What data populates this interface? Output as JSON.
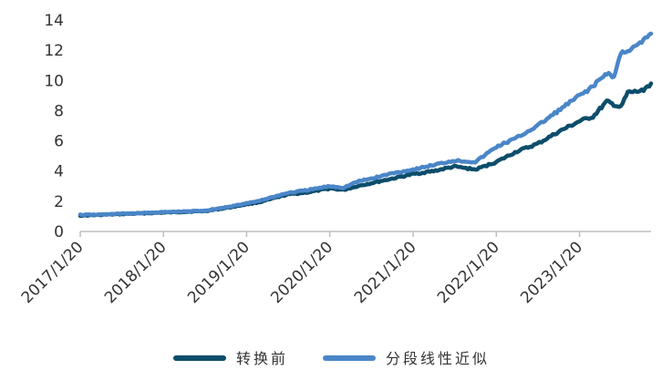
{
  "chart_data": {
    "type": "line",
    "title": "",
    "xlabel": "",
    "ylabel": "",
    "ylim": [
      0,
      14
    ],
    "yticks": [
      0,
      2,
      4,
      6,
      8,
      10,
      12,
      14
    ],
    "xlim": [
      "2017/1/20",
      "2023/11/30"
    ],
    "xticks": [
      "2017/1/20",
      "2018/1/20",
      "2019/1/20",
      "2020/1/20",
      "2021/1/20",
      "2022/1/20",
      "2023/1/20"
    ],
    "grid": false,
    "legend_position": "bottom",
    "series": [
      {
        "name": "转换前",
        "color": "#0d4d6b",
        "points": [
          [
            "2017/1/20",
            1.05
          ],
          [
            "2017/4/20",
            1.1
          ],
          [
            "2017/7/20",
            1.15
          ],
          [
            "2017/10/20",
            1.2
          ],
          [
            "2018/1/20",
            1.25
          ],
          [
            "2018/4/20",
            1.3
          ],
          [
            "2018/7/20",
            1.35
          ],
          [
            "2018/10/20",
            1.55
          ],
          [
            "2019/1/20",
            1.8
          ],
          [
            "2019/3/20",
            1.95
          ],
          [
            "2019/5/20",
            2.2
          ],
          [
            "2019/7/20",
            2.45
          ],
          [
            "2019/10/20",
            2.6
          ],
          [
            "2020/1/20",
            2.85
          ],
          [
            "2020/3/20",
            2.75
          ],
          [
            "2020/5/20",
            3.0
          ],
          [
            "2020/7/20",
            3.2
          ],
          [
            "2020/10/20",
            3.5
          ],
          [
            "2021/1/20",
            3.8
          ],
          [
            "2021/4/20",
            4.0
          ],
          [
            "2021/7/20",
            4.3
          ],
          [
            "2021/10/20",
            4.1
          ],
          [
            "2022/1/20",
            4.6
          ],
          [
            "2022/4/20",
            5.3
          ],
          [
            "2022/7/20",
            5.8
          ],
          [
            "2022/10/20",
            6.6
          ],
          [
            "2023/1/20",
            7.3
          ],
          [
            "2023/3/20",
            7.6
          ],
          [
            "2023/5/20",
            8.6
          ],
          [
            "2023/7/20",
            8.2
          ],
          [
            "2023/8/20",
            9.2
          ],
          [
            "2023/10/20",
            9.3
          ],
          [
            "2023/11/30",
            9.8
          ]
        ]
      },
      {
        "name": "分段线性近似",
        "color": "#4a86c8",
        "points": [
          [
            "2017/1/20",
            1.1
          ],
          [
            "2017/4/20",
            1.12
          ],
          [
            "2017/7/20",
            1.18
          ],
          [
            "2017/10/20",
            1.22
          ],
          [
            "2018/1/20",
            1.28
          ],
          [
            "2018/4/20",
            1.32
          ],
          [
            "2018/7/20",
            1.38
          ],
          [
            "2018/10/20",
            1.6
          ],
          [
            "2019/1/20",
            1.85
          ],
          [
            "2019/3/20",
            2.05
          ],
          [
            "2019/5/20",
            2.3
          ],
          [
            "2019/7/20",
            2.55
          ],
          [
            "2019/10/20",
            2.75
          ],
          [
            "2020/1/20",
            3.0
          ],
          [
            "2020/3/20",
            2.9
          ],
          [
            "2020/5/20",
            3.3
          ],
          [
            "2020/7/20",
            3.5
          ],
          [
            "2020/10/20",
            3.85
          ],
          [
            "2021/1/20",
            4.1
          ],
          [
            "2021/4/20",
            4.4
          ],
          [
            "2021/7/20",
            4.7
          ],
          [
            "2021/10/20",
            4.6
          ],
          [
            "2022/1/20",
            5.6
          ],
          [
            "2022/4/20",
            6.2
          ],
          [
            "2022/7/20",
            7.0
          ],
          [
            "2022/10/20",
            8.0
          ],
          [
            "2023/1/20",
            9.0
          ],
          [
            "2023/3/20",
            9.6
          ],
          [
            "2023/5/20",
            10.5
          ],
          [
            "2023/6/20",
            10.2
          ],
          [
            "2023/7/20",
            11.8
          ],
          [
            "2023/9/20",
            12.2
          ],
          [
            "2023/10/20",
            12.5
          ],
          [
            "2023/11/30",
            13.1
          ]
        ]
      }
    ]
  }
}
